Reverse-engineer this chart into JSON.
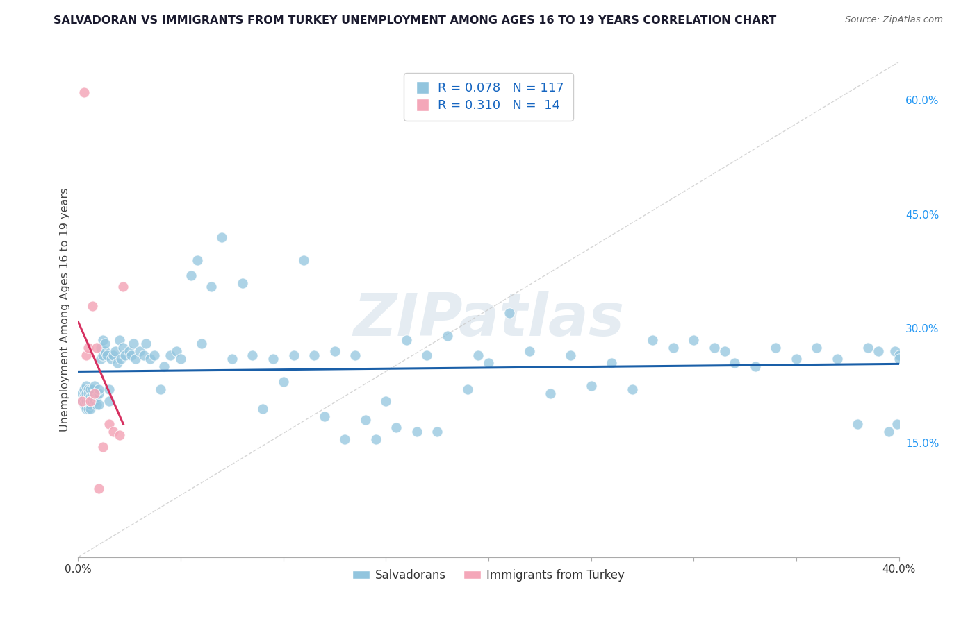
{
  "title": "SALVADORAN VS IMMIGRANTS FROM TURKEY UNEMPLOYMENT AMONG AGES 16 TO 19 YEARS CORRELATION CHART",
  "source": "Source: ZipAtlas.com",
  "ylabel": "Unemployment Among Ages 16 to 19 years",
  "xlabel_salvadoran": "Salvadorans",
  "xlabel_turkey": "Immigrants from Turkey",
  "xmin": 0.0,
  "xmax": 0.4,
  "ymin": 0.0,
  "ymax": 0.65,
  "y_ticks": [
    0.0,
    0.15,
    0.3,
    0.45,
    0.6
  ],
  "y_tick_labels_right": [
    "",
    "15.0%",
    "30.0%",
    "45.0%",
    "60.0%"
  ],
  "R_salvadoran": 0.078,
  "N_salvadoran": 117,
  "R_turkey": 0.31,
  "N_turkey": 14,
  "color_salvadoran": "#92c5de",
  "color_turkey": "#f4a7b9",
  "color_line_salvadoran": "#1a5fa8",
  "color_line_turkey": "#d63060",
  "salvadoran_x": [
    0.002,
    0.002,
    0.003,
    0.003,
    0.003,
    0.004,
    0.004,
    0.004,
    0.004,
    0.005,
    0.005,
    0.005,
    0.005,
    0.005,
    0.005,
    0.006,
    0.006,
    0.006,
    0.006,
    0.007,
    0.007,
    0.007,
    0.008,
    0.008,
    0.008,
    0.009,
    0.009,
    0.01,
    0.01,
    0.01,
    0.011,
    0.011,
    0.012,
    0.012,
    0.013,
    0.013,
    0.014,
    0.015,
    0.015,
    0.016,
    0.017,
    0.018,
    0.019,
    0.02,
    0.021,
    0.022,
    0.023,
    0.025,
    0.026,
    0.027,
    0.028,
    0.03,
    0.032,
    0.033,
    0.035,
    0.037,
    0.04,
    0.042,
    0.045,
    0.048,
    0.05,
    0.055,
    0.058,
    0.06,
    0.065,
    0.07,
    0.075,
    0.08,
    0.085,
    0.09,
    0.095,
    0.1,
    0.105,
    0.11,
    0.115,
    0.12,
    0.125,
    0.13,
    0.135,
    0.14,
    0.145,
    0.15,
    0.155,
    0.16,
    0.165,
    0.17,
    0.175,
    0.18,
    0.19,
    0.195,
    0.2,
    0.21,
    0.22,
    0.23,
    0.24,
    0.25,
    0.26,
    0.27,
    0.28,
    0.29,
    0.3,
    0.31,
    0.315,
    0.32,
    0.33,
    0.34,
    0.35,
    0.36,
    0.37,
    0.38,
    0.385,
    0.39,
    0.395,
    0.398,
    0.399,
    0.4,
    0.4
  ],
  "salvadoran_y": [
    0.205,
    0.215,
    0.2,
    0.21,
    0.22,
    0.195,
    0.205,
    0.215,
    0.225,
    0.2,
    0.21,
    0.22,
    0.205,
    0.195,
    0.215,
    0.2,
    0.21,
    0.22,
    0.195,
    0.21,
    0.215,
    0.22,
    0.205,
    0.215,
    0.225,
    0.2,
    0.21,
    0.2,
    0.215,
    0.22,
    0.26,
    0.275,
    0.265,
    0.285,
    0.27,
    0.28,
    0.265,
    0.205,
    0.22,
    0.26,
    0.265,
    0.27,
    0.255,
    0.285,
    0.26,
    0.275,
    0.265,
    0.27,
    0.265,
    0.28,
    0.26,
    0.27,
    0.265,
    0.28,
    0.26,
    0.265,
    0.22,
    0.25,
    0.265,
    0.27,
    0.26,
    0.37,
    0.39,
    0.28,
    0.355,
    0.42,
    0.26,
    0.36,
    0.265,
    0.195,
    0.26,
    0.23,
    0.265,
    0.39,
    0.265,
    0.185,
    0.27,
    0.155,
    0.265,
    0.18,
    0.155,
    0.205,
    0.17,
    0.285,
    0.165,
    0.265,
    0.165,
    0.29,
    0.22,
    0.265,
    0.255,
    0.32,
    0.27,
    0.215,
    0.265,
    0.225,
    0.255,
    0.22,
    0.285,
    0.275,
    0.285,
    0.275,
    0.27,
    0.255,
    0.25,
    0.275,
    0.26,
    0.275,
    0.26,
    0.175,
    0.275,
    0.27,
    0.165,
    0.27,
    0.175,
    0.265,
    0.26
  ],
  "turkey_x": [
    0.002,
    0.003,
    0.004,
    0.005,
    0.006,
    0.007,
    0.008,
    0.009,
    0.01,
    0.012,
    0.015,
    0.017,
    0.02,
    0.022
  ],
  "turkey_y": [
    0.205,
    0.61,
    0.265,
    0.275,
    0.205,
    0.33,
    0.215,
    0.275,
    0.09,
    0.145,
    0.175,
    0.165,
    0.16,
    0.355
  ]
}
